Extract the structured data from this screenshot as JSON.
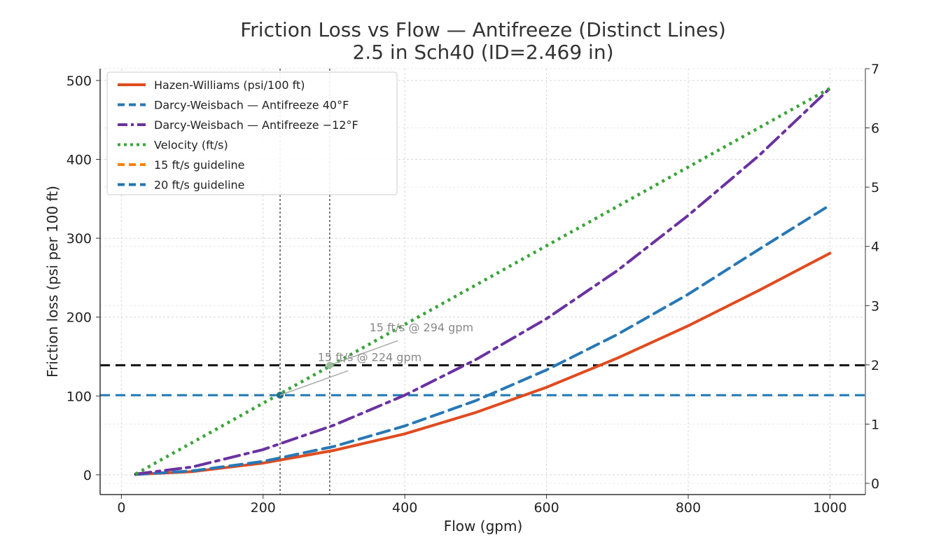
{
  "chart_data": {
    "type": "line",
    "title_line1": "Friction Loss vs Flow — Antifreeze (Distinct Lines)",
    "title_line2": "2.5 in Sch40 (ID=2.469 in)",
    "xlabel": "Flow (gpm)",
    "ylabel": "Friction loss (psi per 100 ft)",
    "xlim": [
      -30,
      1050
    ],
    "ylim": [
      -25,
      515
    ],
    "xticks": [
      0,
      200,
      400,
      600,
      800,
      1000
    ],
    "yticks": [
      0,
      100,
      200,
      300,
      400,
      500
    ],
    "right_tick_marks": [
      "0",
      "1",
      "2",
      "3",
      "4",
      "5",
      "6",
      "7"
    ],
    "grid": true,
    "legend_position": "upper-left",
    "series": [
      {
        "name": "Hazen-Williams (psi/100 ft)",
        "color": "#e04b1f",
        "style": "solid",
        "x": [
          20,
          100,
          200,
          300,
          400,
          500,
          600,
          700,
          800,
          900,
          1000
        ],
        "y": [
          0.5,
          4,
          15,
          31,
          52,
          79,
          111,
          148,
          189,
          234,
          281
        ]
      },
      {
        "name": "Darcy-Weisbach — Antifreeze 40°F",
        "color": "#2878b5",
        "style": "dashed",
        "x": [
          20,
          100,
          200,
          300,
          400,
          500,
          600,
          700,
          800,
          900,
          1000
        ],
        "y": [
          0.5,
          5,
          17,
          36,
          62,
          94,
          133,
          178,
          229,
          286,
          342
        ]
      },
      {
        "name": "Darcy-Weisbach — Antifreeze −12°F",
        "color": "#6a32a0",
        "style": "dashdot",
        "x": [
          20,
          100,
          200,
          300,
          400,
          500,
          600,
          700,
          800,
          900,
          1000
        ],
        "y": [
          1,
          10,
          32,
          63,
          101,
          146,
          198,
          259,
          329,
          405,
          490
        ]
      },
      {
        "name": "Velocity (ft/s)",
        "color": "#3aa43a",
        "style": "dotted",
        "x": [
          20,
          1000
        ],
        "y": [
          1,
          490
        ]
      },
      {
        "name": "15 ft/s guideline",
        "color": "#ff7f0e",
        "style": "dashed",
        "x": [],
        "y": []
      },
      {
        "name": "20 ft/s guideline",
        "color": "#1f77b4",
        "style": "dashed",
        "x": [],
        "y": []
      }
    ],
    "hlines": [
      {
        "y": 101,
        "color": "#1f77b4"
      },
      {
        "y": 139,
        "color": "#111111"
      }
    ],
    "vlines": [
      {
        "x": 224,
        "color": "#555555"
      },
      {
        "x": 294,
        "color": "#555555"
      }
    ],
    "markers": [
      {
        "x": 224,
        "y": 101,
        "color": "#1f6f8b"
      },
      {
        "x": 294,
        "y": 139,
        "color": "#9bbf9b"
      }
    ],
    "annotations": [
      {
        "text": "15 ft/s @ 294 gpm",
        "x": 350,
        "y": 182,
        "point_x": 294,
        "point_y": 139,
        "arrow_from_x": 390,
        "arrow_from_y": 170
      },
      {
        "text": "15 ft/s @ 224 gpm",
        "x": 277,
        "y": 144,
        "point_x": 224,
        "point_y": 101,
        "arrow_from_x": 320,
        "arrow_from_y": 132
      }
    ]
  }
}
